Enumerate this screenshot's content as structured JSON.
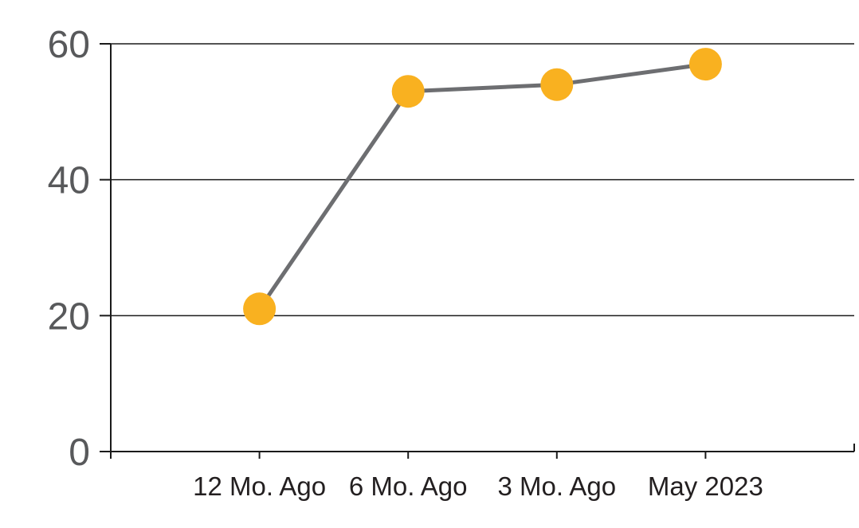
{
  "chart_data": {
    "type": "line",
    "categories": [
      "12 Mo. Ago",
      "6 Mo. Ago",
      "3 Mo. Ago",
      "May 2023"
    ],
    "series": [
      {
        "name": "value",
        "values": [
          21,
          53,
          54,
          57
        ]
      }
    ],
    "title": "",
    "xlabel": "",
    "ylabel": "",
    "ylim": [
      0,
      60
    ],
    "yticks": [
      0,
      20,
      40,
      60
    ],
    "grid": true,
    "legend": false,
    "colors": {
      "marker": "#F9B120",
      "line": "#6D6E71",
      "grid": "#1A1A1A",
      "axis": "#1A1A1A",
      "y_tick_label": "#58595B",
      "x_tick_label": "#231F20",
      "background": "#FFFFFF"
    }
  }
}
